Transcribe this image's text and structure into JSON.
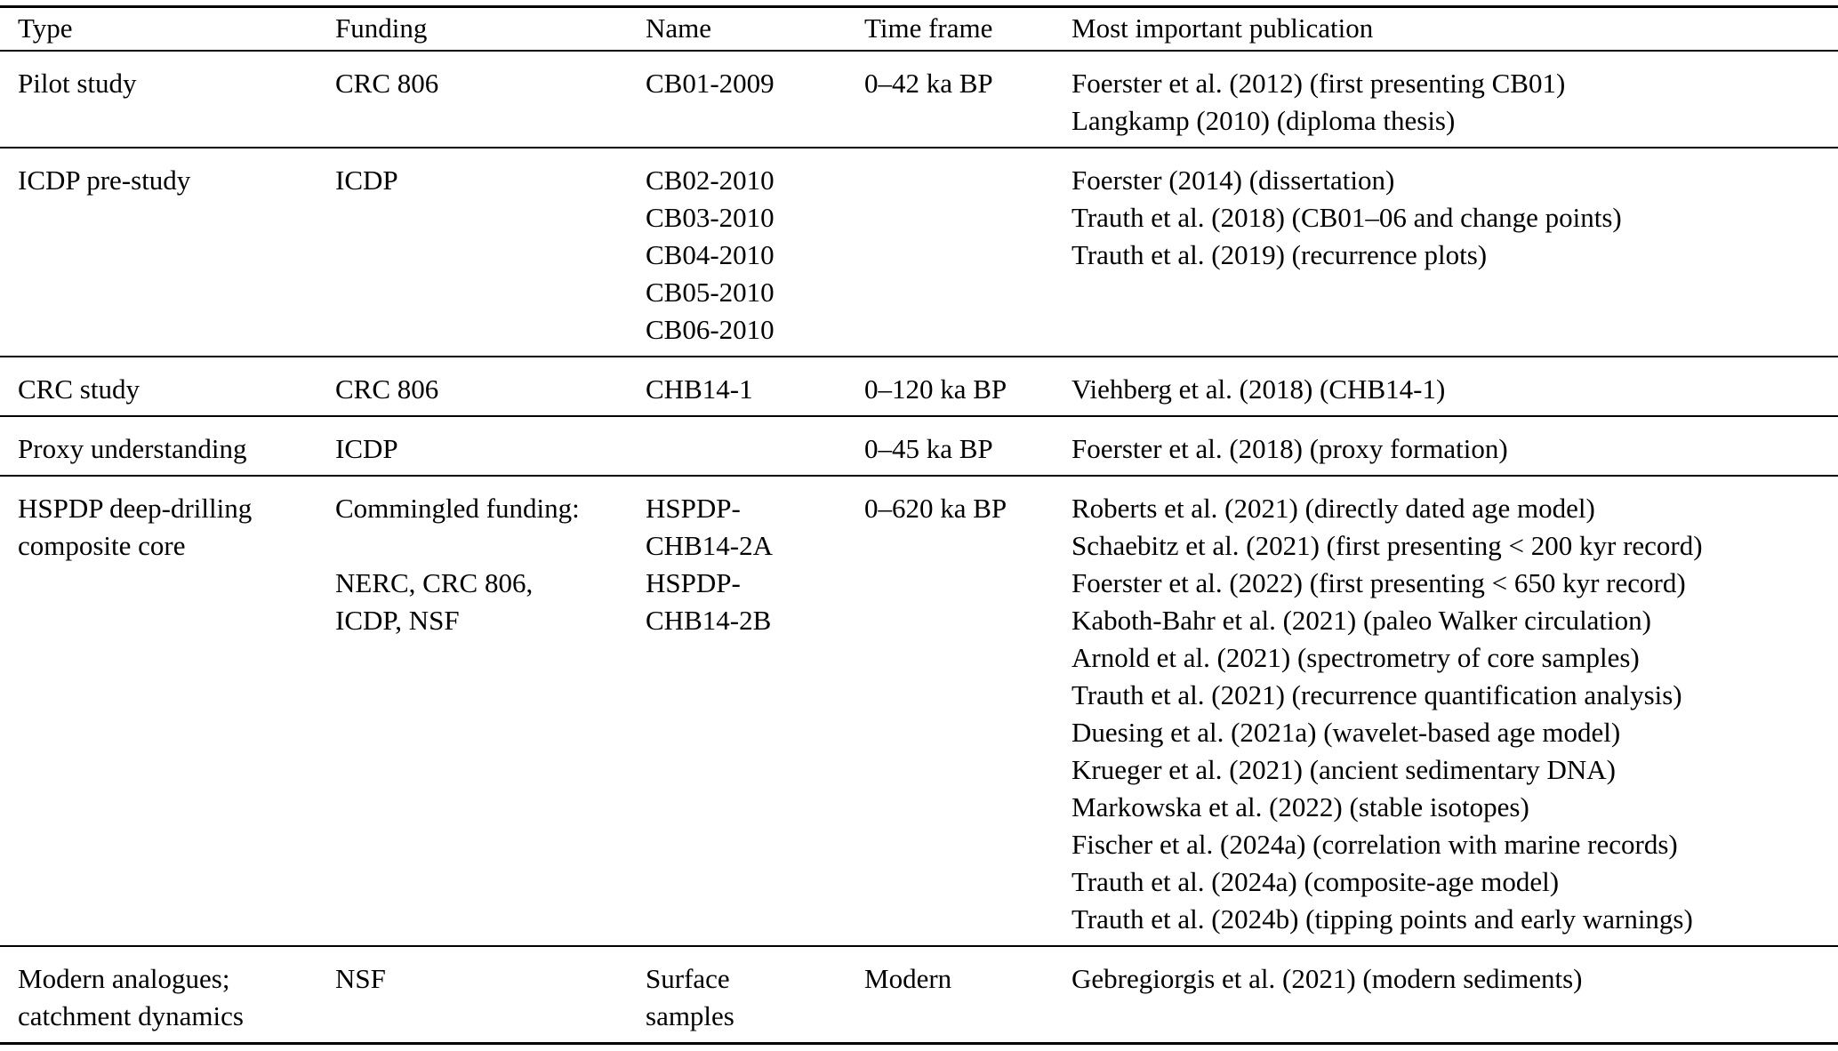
{
  "colors": {
    "background": "#ffffff",
    "text": "#000000",
    "rule": "#000000"
  },
  "table": {
    "columns": [
      {
        "key": "type",
        "label": "Type"
      },
      {
        "key": "funding",
        "label": "Funding"
      },
      {
        "key": "name",
        "label": "Name"
      },
      {
        "key": "timeframe",
        "label": "Time frame"
      },
      {
        "key": "publication",
        "label": "Most important publication"
      }
    ],
    "rows": [
      {
        "type": [
          "Pilot study"
        ],
        "funding": [
          "CRC 806"
        ],
        "name": [
          "CB01-2009"
        ],
        "timeframe": [
          "0–42 ka BP"
        ],
        "publication": [
          "Foerster et al. (2012) (first presenting CB01)",
          "Langkamp (2010) (diploma thesis)"
        ]
      },
      {
        "type": [
          "ICDP pre-study"
        ],
        "funding": [
          "ICDP"
        ],
        "name": [
          "CB02-2010",
          "CB03-2010",
          "CB04-2010",
          "CB05-2010",
          "CB06-2010"
        ],
        "timeframe": [],
        "publication": [
          "Foerster (2014) (dissertation)",
          "Trauth et al. (2018) (CB01–06 and change points)",
          "Trauth et al. (2019) (recurrence plots)"
        ]
      },
      {
        "type": [
          "CRC study"
        ],
        "funding": [
          "CRC 806"
        ],
        "name": [
          "CHB14-1"
        ],
        "timeframe": [
          "0–120 ka BP"
        ],
        "publication": [
          "Viehberg et al. (2018) (CHB14-1)"
        ]
      },
      {
        "type": [
          "Proxy understanding"
        ],
        "funding": [
          "ICDP"
        ],
        "name": [],
        "timeframe": [
          "0–45 ka BP"
        ],
        "publication": [
          "Foerster et al. (2018) (proxy formation)"
        ]
      },
      {
        "type": [
          "HSPDP deep-drilling",
          "composite core"
        ],
        "funding": [
          "Commingled funding:",
          "",
          "NERC, CRC 806,",
          "ICDP, NSF"
        ],
        "name": [
          "HSPDP-",
          "CHB14-2A",
          "HSPDP-",
          "CHB14-2B"
        ],
        "timeframe": [
          "0–620 ka BP"
        ],
        "publication": [
          "Roberts et al. (2021) (directly dated age model)",
          "Schaebitz et al. (2021) (first presenting < 200 kyr record)",
          "Foerster et al. (2022) (first presenting < 650 kyr record)",
          "Kaboth-Bahr et al. (2021) (paleo Walker circulation)",
          "Arnold et al. (2021) (spectrometry of core samples)",
          "Trauth et al. (2021) (recurrence quantification analysis)",
          "Duesing et al. (2021a) (wavelet-based age model)",
          "Krueger et al. (2021) (ancient sedimentary DNA)",
          "Markowska et al. (2022) (stable isotopes)",
          "Fischer et al. (2024a) (correlation with marine records)",
          "Trauth et al. (2024a) (composite-age model)",
          "Trauth et al. (2024b) (tipping points and early warnings)"
        ]
      },
      {
        "type": [
          "Modern analogues;",
          "catchment dynamics"
        ],
        "funding": [
          "NSF"
        ],
        "name": [
          "Surface",
          "samples"
        ],
        "timeframe": [
          "Modern"
        ],
        "publication": [
          "Gebregiorgis et al. (2021) (modern sediments)"
        ]
      }
    ]
  }
}
